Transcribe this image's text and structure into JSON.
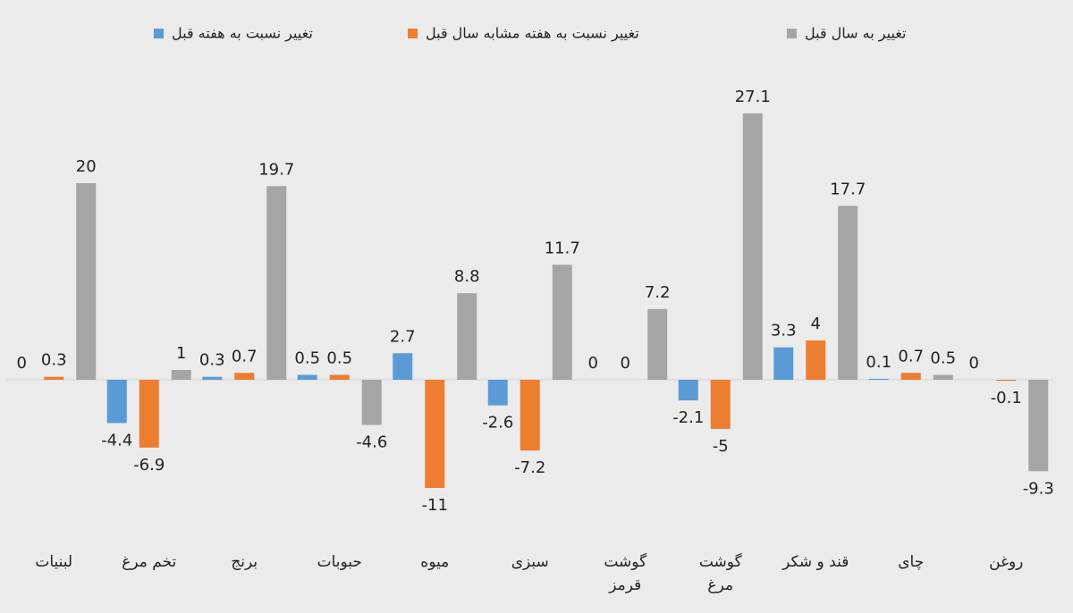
{
  "chart_data": {
    "type": "bar",
    "categories": [
      "لبنیات",
      "تخم مرغ",
      "برنج",
      "حبوبات",
      "میوه",
      "سبزی",
      "گوشت قرمز",
      "گوشت مرغ",
      "قند و شکر",
      "چای",
      "روغن"
    ],
    "series": [
      {
        "name": "تغییر نسبت به هفته قبل",
        "color": "#5b9bd5",
        "values": [
          0,
          -4.4,
          0.3,
          0.5,
          2.7,
          -2.6,
          0,
          -2.1,
          3.3,
          0.1,
          0
        ]
      },
      {
        "name": "تغییر نسبت به هفته مشابه سال قبل",
        "color": "#ed7d31",
        "values": [
          0.3,
          -6.9,
          0.7,
          0.5,
          -11,
          -7.2,
          0,
          -5,
          4,
          0.7,
          -0.1
        ]
      },
      {
        "name": "تغییر به سال قبل",
        "color": "#a5a5a5",
        "values": [
          20,
          1,
          19.7,
          -4.6,
          8.8,
          11.7,
          7.2,
          27.1,
          17.7,
          0.5,
          -9.3
        ]
      }
    ],
    "ylim": [
      -12,
      28
    ]
  }
}
